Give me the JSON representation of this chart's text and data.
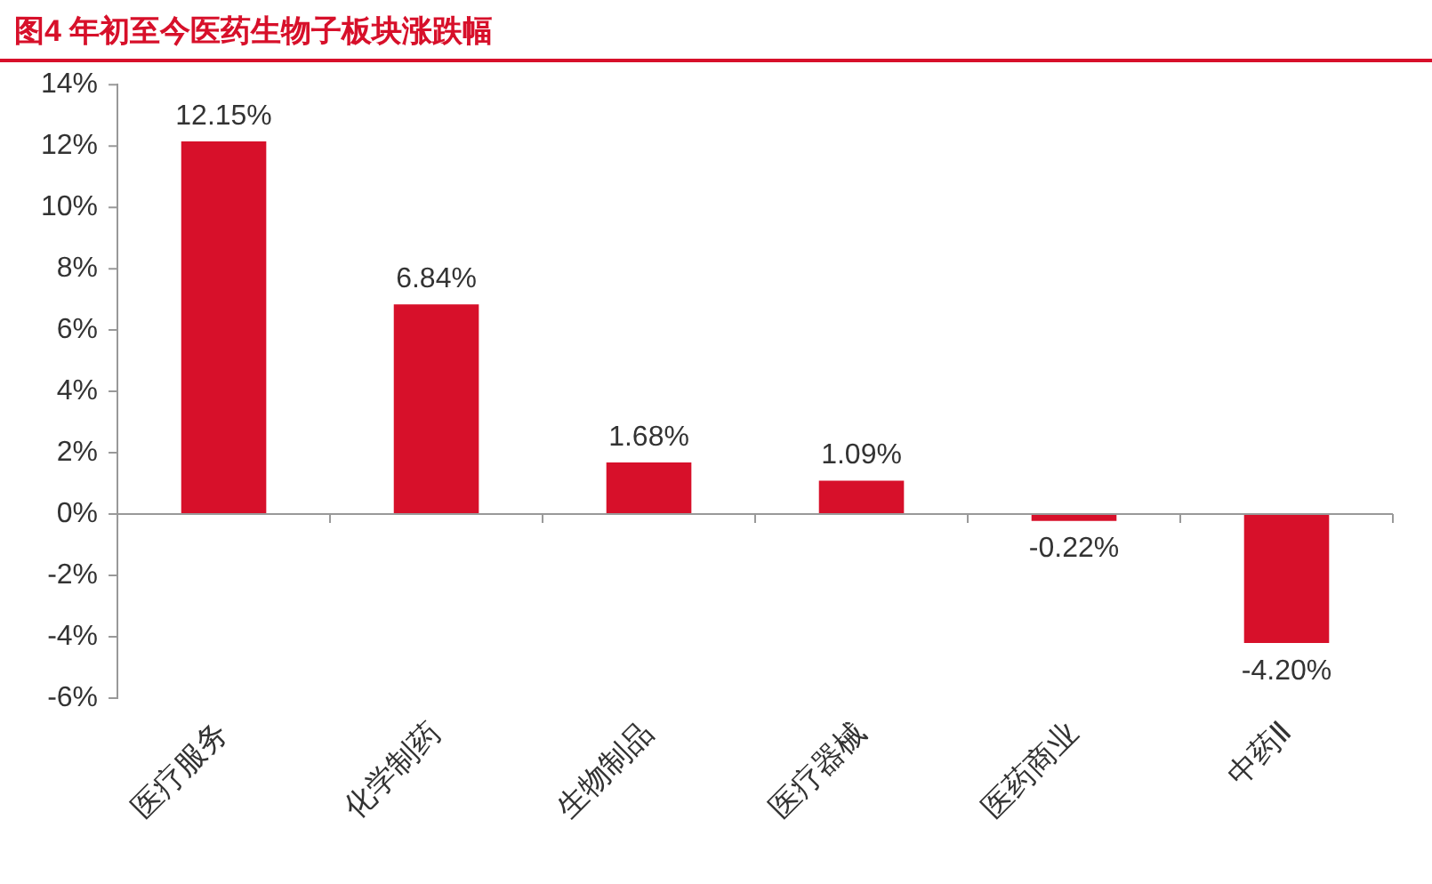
{
  "chart_data": {
    "type": "bar",
    "title": "图4  年初至今医药生物子板块涨跌幅",
    "categories": [
      "医疗服务",
      "化学制药",
      "生物制品",
      "医疗器械",
      "医药商业",
      "中药Ⅱ"
    ],
    "values": [
      12.15,
      6.84,
      1.68,
      1.09,
      -0.22,
      -4.2
    ],
    "value_labels": [
      "12.15%",
      "6.84%",
      "1.68%",
      "1.09%",
      "-0.22%",
      "-4.20%"
    ],
    "color": "#d7102a",
    "ylim": [
      -6,
      14
    ],
    "yticks": [
      {
        "value": -6,
        "label": "-6%"
      },
      {
        "value": -4,
        "label": "-4%"
      },
      {
        "value": -2,
        "label": "-2%"
      },
      {
        "value": 0,
        "label": "0%"
      },
      {
        "value": 2,
        "label": "2%"
      },
      {
        "value": 4,
        "label": "4%"
      },
      {
        "value": 6,
        "label": "6%"
      },
      {
        "value": 8,
        "label": "8%"
      },
      {
        "value": 10,
        "label": "10%"
      },
      {
        "value": 12,
        "label": "12%"
      },
      {
        "value": 14,
        "label": "14%"
      }
    ],
    "ref_lines": [
      {
        "axis": "y",
        "value": 0,
        "color": "#999999"
      }
    ],
    "grid": false,
    "legend": false
  }
}
